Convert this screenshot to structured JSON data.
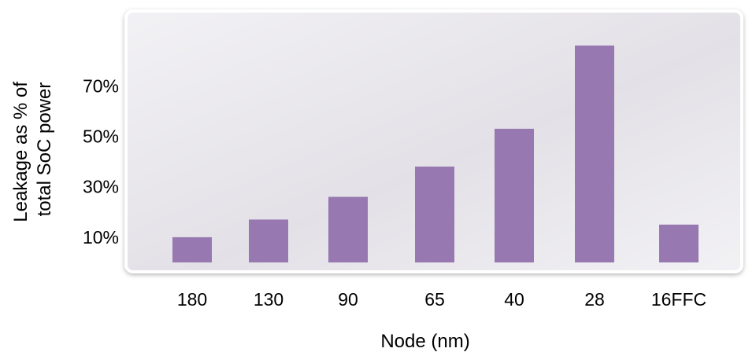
{
  "colors": {
    "bar": "#9778B0",
    "panel_top": "#F2F1F4",
    "panel_mid": "#E3E1E7",
    "panel_border": "#FFFFFF"
  },
  "chart_data": {
    "type": "bar",
    "title": "",
    "xlabel": "Node (nm)",
    "ylabel_lines": [
      "Leakage as % of",
      "total SoC power"
    ],
    "categories": [
      "180",
      "130",
      "90",
      "65",
      "40",
      "28",
      "16FFC"
    ],
    "values": [
      10,
      17,
      26,
      38,
      53,
      86,
      15
    ],
    "y_ticks": [
      10,
      30,
      50,
      70
    ],
    "y_tick_labels": [
      "10%",
      "30%",
      "50%",
      "70%"
    ],
    "ylim": [
      0,
      100
    ],
    "grid": false,
    "legend": "none"
  }
}
